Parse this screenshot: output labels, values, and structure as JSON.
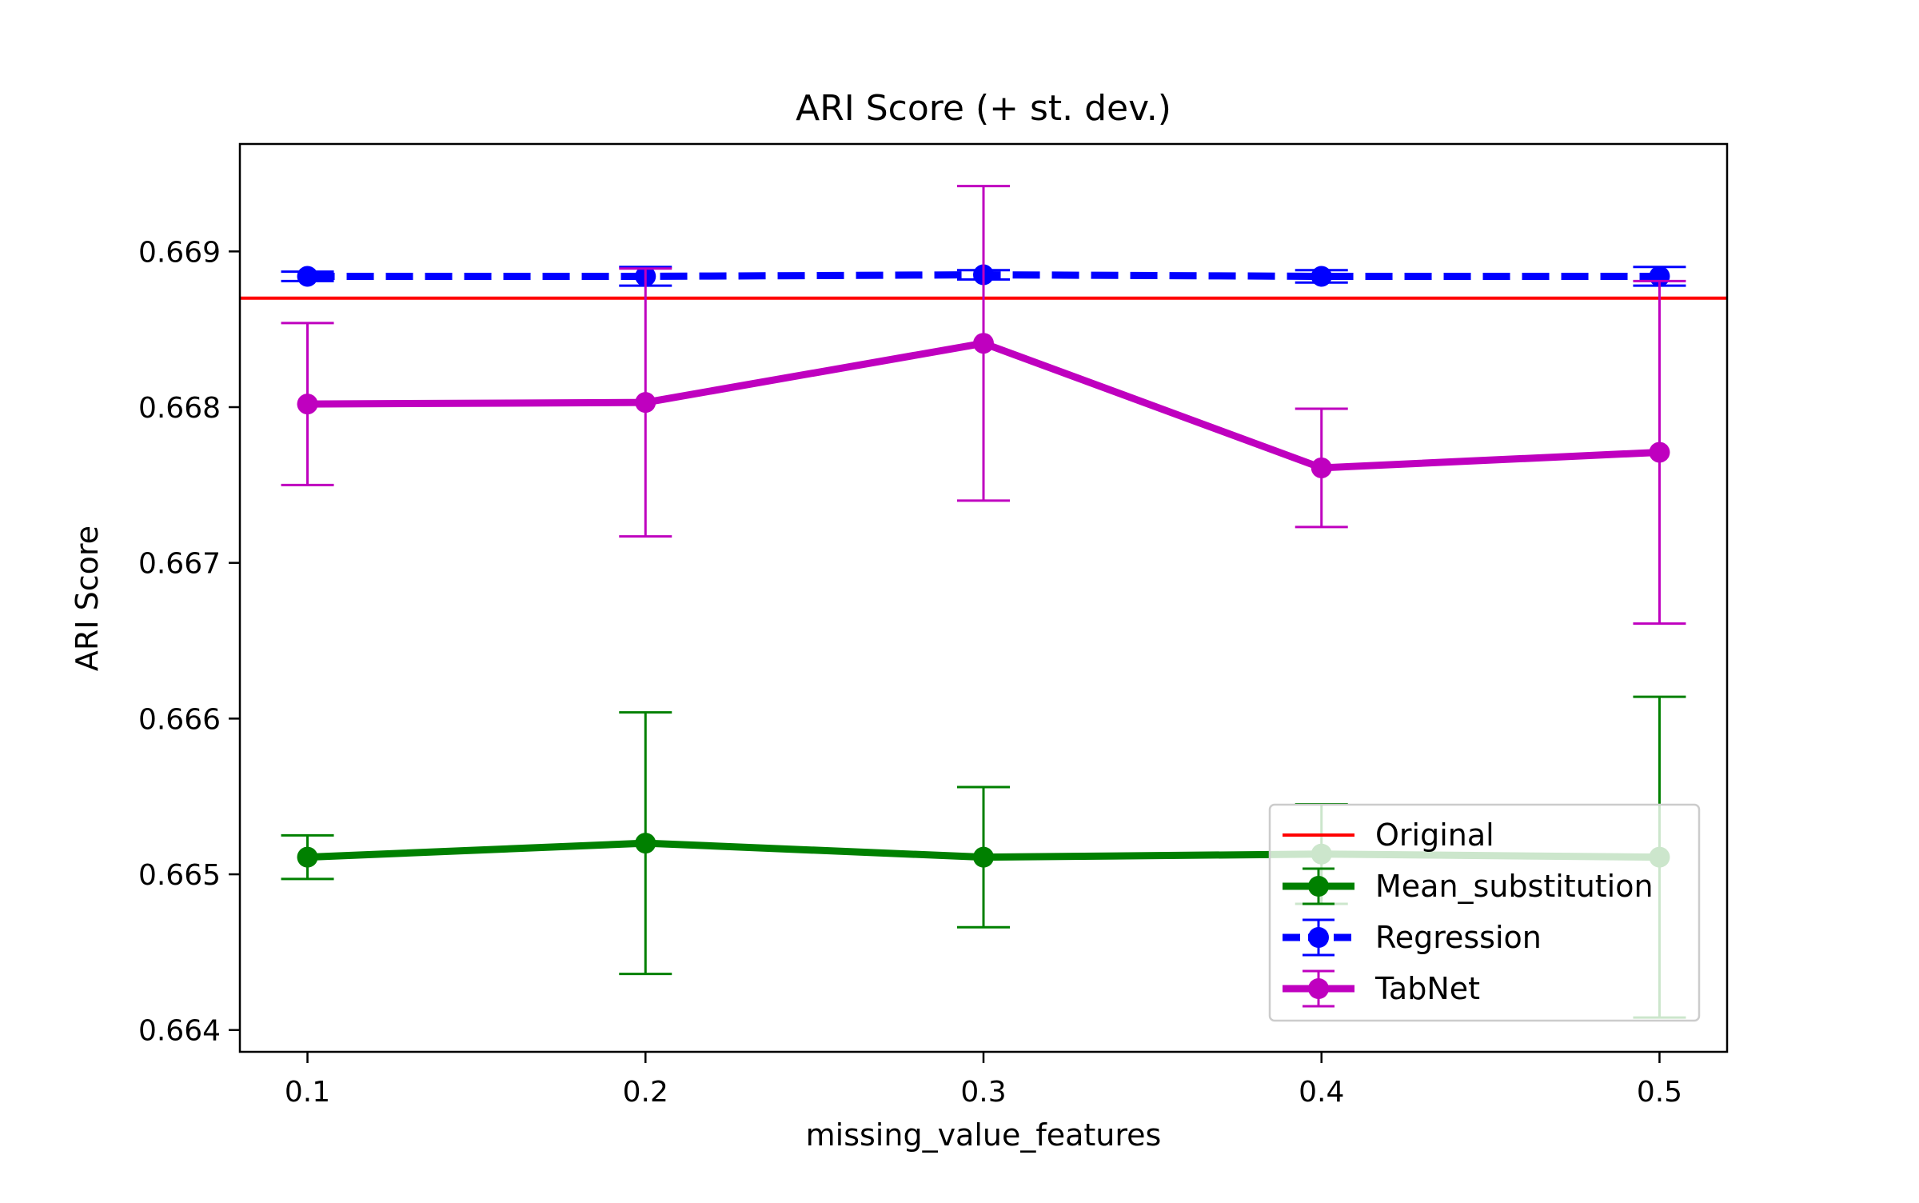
{
  "chart_data": {
    "type": "line",
    "title": "ARI Score (+ st. dev.)",
    "xlabel": "missing_value_features",
    "ylabel": "ARI Score",
    "x": [
      0.1,
      0.2,
      0.3,
      0.4,
      0.5
    ],
    "x_ticks": [
      "0.1",
      "0.2",
      "0.3",
      "0.4",
      "0.5"
    ],
    "y_ticks": [
      0.664,
      0.665,
      0.666,
      0.667,
      0.668,
      0.669
    ],
    "y_tick_labels": [
      "0.664",
      "0.665",
      "0.666",
      "0.667",
      "0.668",
      "0.669"
    ],
    "xlim": [
      0.08,
      0.52
    ],
    "ylim": [
      0.66386,
      0.66969
    ],
    "grid": false,
    "legend_position": "lower-right",
    "reference_line": {
      "name": "Original",
      "y": 0.6687,
      "color": "#ff0000"
    },
    "series": [
      {
        "name": "Mean_substitution",
        "color": "#008000",
        "style": "solid",
        "values": [
          0.66511,
          0.6652,
          0.66511,
          0.66513,
          0.66511
        ],
        "error": [
          0.00014,
          0.00084,
          0.00045,
          0.00032,
          0.00103
        ]
      },
      {
        "name": "Regression",
        "color": "#0000ff",
        "style": "dashed",
        "values": [
          0.66884,
          0.66884,
          0.66885,
          0.66884,
          0.66884
        ],
        "error": [
          3e-05,
          6e-05,
          3e-05,
          4e-05,
          6e-05
        ]
      },
      {
        "name": "TabNet",
        "color": "#bf00bf",
        "style": "solid",
        "values": [
          0.66802,
          0.66803,
          0.66841,
          0.66761,
          0.66771
        ],
        "error": [
          0.00052,
          0.00086,
          0.00101,
          0.00038,
          0.0011
        ]
      }
    ]
  }
}
